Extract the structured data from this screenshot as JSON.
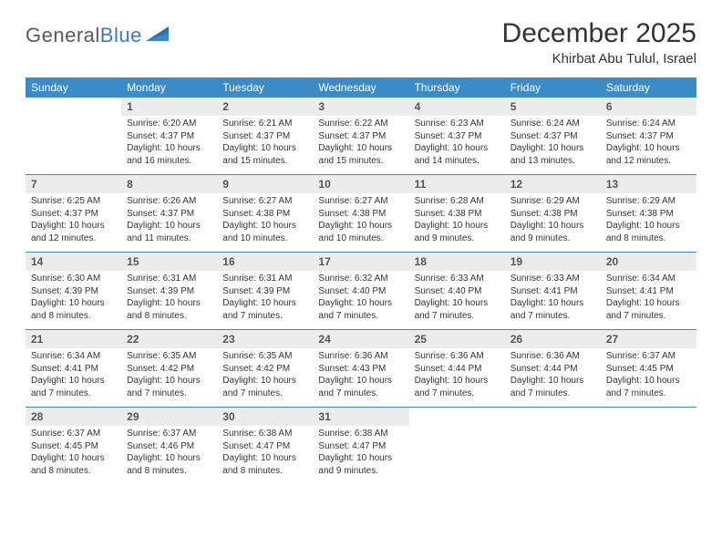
{
  "logo": {
    "word1": "General",
    "word2": "Blue"
  },
  "title": "December 2025",
  "location": "Khirbat Abu Tulul, Israel",
  "colors": {
    "header_bg": "#3b8bc8",
    "header_text": "#ffffff",
    "daynum_bg": "#ececec",
    "daynum_text": "#555555",
    "body_text": "#333333",
    "rule": "#3b8bc8",
    "logo_gray": "#5a5a5a",
    "logo_blue": "#3b7bbf"
  },
  "typography": {
    "title_fontsize": 30,
    "location_fontsize": 15,
    "dow_fontsize": 12,
    "daynum_fontsize": 12,
    "cell_fontsize": 10
  },
  "dow": [
    "Sunday",
    "Monday",
    "Tuesday",
    "Wednesday",
    "Thursday",
    "Friday",
    "Saturday"
  ],
  "weeks": [
    [
      null,
      {
        "n": "1",
        "sr": "Sunrise: 6:20 AM",
        "ss": "Sunset: 4:37 PM",
        "d1": "Daylight: 10 hours",
        "d2": "and 16 minutes."
      },
      {
        "n": "2",
        "sr": "Sunrise: 6:21 AM",
        "ss": "Sunset: 4:37 PM",
        "d1": "Daylight: 10 hours",
        "d2": "and 15 minutes."
      },
      {
        "n": "3",
        "sr": "Sunrise: 6:22 AM",
        "ss": "Sunset: 4:37 PM",
        "d1": "Daylight: 10 hours",
        "d2": "and 15 minutes."
      },
      {
        "n": "4",
        "sr": "Sunrise: 6:23 AM",
        "ss": "Sunset: 4:37 PM",
        "d1": "Daylight: 10 hours",
        "d2": "and 14 minutes."
      },
      {
        "n": "5",
        "sr": "Sunrise: 6:24 AM",
        "ss": "Sunset: 4:37 PM",
        "d1": "Daylight: 10 hours",
        "d2": "and 13 minutes."
      },
      {
        "n": "6",
        "sr": "Sunrise: 6:24 AM",
        "ss": "Sunset: 4:37 PM",
        "d1": "Daylight: 10 hours",
        "d2": "and 12 minutes."
      }
    ],
    [
      {
        "n": "7",
        "sr": "Sunrise: 6:25 AM",
        "ss": "Sunset: 4:37 PM",
        "d1": "Daylight: 10 hours",
        "d2": "and 12 minutes."
      },
      {
        "n": "8",
        "sr": "Sunrise: 6:26 AM",
        "ss": "Sunset: 4:37 PM",
        "d1": "Daylight: 10 hours",
        "d2": "and 11 minutes."
      },
      {
        "n": "9",
        "sr": "Sunrise: 6:27 AM",
        "ss": "Sunset: 4:38 PM",
        "d1": "Daylight: 10 hours",
        "d2": "and 10 minutes."
      },
      {
        "n": "10",
        "sr": "Sunrise: 6:27 AM",
        "ss": "Sunset: 4:38 PM",
        "d1": "Daylight: 10 hours",
        "d2": "and 10 minutes."
      },
      {
        "n": "11",
        "sr": "Sunrise: 6:28 AM",
        "ss": "Sunset: 4:38 PM",
        "d1": "Daylight: 10 hours",
        "d2": "and 9 minutes."
      },
      {
        "n": "12",
        "sr": "Sunrise: 6:29 AM",
        "ss": "Sunset: 4:38 PM",
        "d1": "Daylight: 10 hours",
        "d2": "and 9 minutes."
      },
      {
        "n": "13",
        "sr": "Sunrise: 6:29 AM",
        "ss": "Sunset: 4:38 PM",
        "d1": "Daylight: 10 hours",
        "d2": "and 8 minutes."
      }
    ],
    [
      {
        "n": "14",
        "sr": "Sunrise: 6:30 AM",
        "ss": "Sunset: 4:39 PM",
        "d1": "Daylight: 10 hours",
        "d2": "and 8 minutes."
      },
      {
        "n": "15",
        "sr": "Sunrise: 6:31 AM",
        "ss": "Sunset: 4:39 PM",
        "d1": "Daylight: 10 hours",
        "d2": "and 8 minutes."
      },
      {
        "n": "16",
        "sr": "Sunrise: 6:31 AM",
        "ss": "Sunset: 4:39 PM",
        "d1": "Daylight: 10 hours",
        "d2": "and 7 minutes."
      },
      {
        "n": "17",
        "sr": "Sunrise: 6:32 AM",
        "ss": "Sunset: 4:40 PM",
        "d1": "Daylight: 10 hours",
        "d2": "and 7 minutes."
      },
      {
        "n": "18",
        "sr": "Sunrise: 6:33 AM",
        "ss": "Sunset: 4:40 PM",
        "d1": "Daylight: 10 hours",
        "d2": "and 7 minutes."
      },
      {
        "n": "19",
        "sr": "Sunrise: 6:33 AM",
        "ss": "Sunset: 4:41 PM",
        "d1": "Daylight: 10 hours",
        "d2": "and 7 minutes."
      },
      {
        "n": "20",
        "sr": "Sunrise: 6:34 AM",
        "ss": "Sunset: 4:41 PM",
        "d1": "Daylight: 10 hours",
        "d2": "and 7 minutes."
      }
    ],
    [
      {
        "n": "21",
        "sr": "Sunrise: 6:34 AM",
        "ss": "Sunset: 4:41 PM",
        "d1": "Daylight: 10 hours",
        "d2": "and 7 minutes."
      },
      {
        "n": "22",
        "sr": "Sunrise: 6:35 AM",
        "ss": "Sunset: 4:42 PM",
        "d1": "Daylight: 10 hours",
        "d2": "and 7 minutes."
      },
      {
        "n": "23",
        "sr": "Sunrise: 6:35 AM",
        "ss": "Sunset: 4:42 PM",
        "d1": "Daylight: 10 hours",
        "d2": "and 7 minutes."
      },
      {
        "n": "24",
        "sr": "Sunrise: 6:36 AM",
        "ss": "Sunset: 4:43 PM",
        "d1": "Daylight: 10 hours",
        "d2": "and 7 minutes."
      },
      {
        "n": "25",
        "sr": "Sunrise: 6:36 AM",
        "ss": "Sunset: 4:44 PM",
        "d1": "Daylight: 10 hours",
        "d2": "and 7 minutes."
      },
      {
        "n": "26",
        "sr": "Sunrise: 6:36 AM",
        "ss": "Sunset: 4:44 PM",
        "d1": "Daylight: 10 hours",
        "d2": "and 7 minutes."
      },
      {
        "n": "27",
        "sr": "Sunrise: 6:37 AM",
        "ss": "Sunset: 4:45 PM",
        "d1": "Daylight: 10 hours",
        "d2": "and 7 minutes."
      }
    ],
    [
      {
        "n": "28",
        "sr": "Sunrise: 6:37 AM",
        "ss": "Sunset: 4:45 PM",
        "d1": "Daylight: 10 hours",
        "d2": "and 8 minutes."
      },
      {
        "n": "29",
        "sr": "Sunrise: 6:37 AM",
        "ss": "Sunset: 4:46 PM",
        "d1": "Daylight: 10 hours",
        "d2": "and 8 minutes."
      },
      {
        "n": "30",
        "sr": "Sunrise: 6:38 AM",
        "ss": "Sunset: 4:47 PM",
        "d1": "Daylight: 10 hours",
        "d2": "and 8 minutes."
      },
      {
        "n": "31",
        "sr": "Sunrise: 6:38 AM",
        "ss": "Sunset: 4:47 PM",
        "d1": "Daylight: 10 hours",
        "d2": "and 9 minutes."
      },
      null,
      null,
      null
    ]
  ]
}
